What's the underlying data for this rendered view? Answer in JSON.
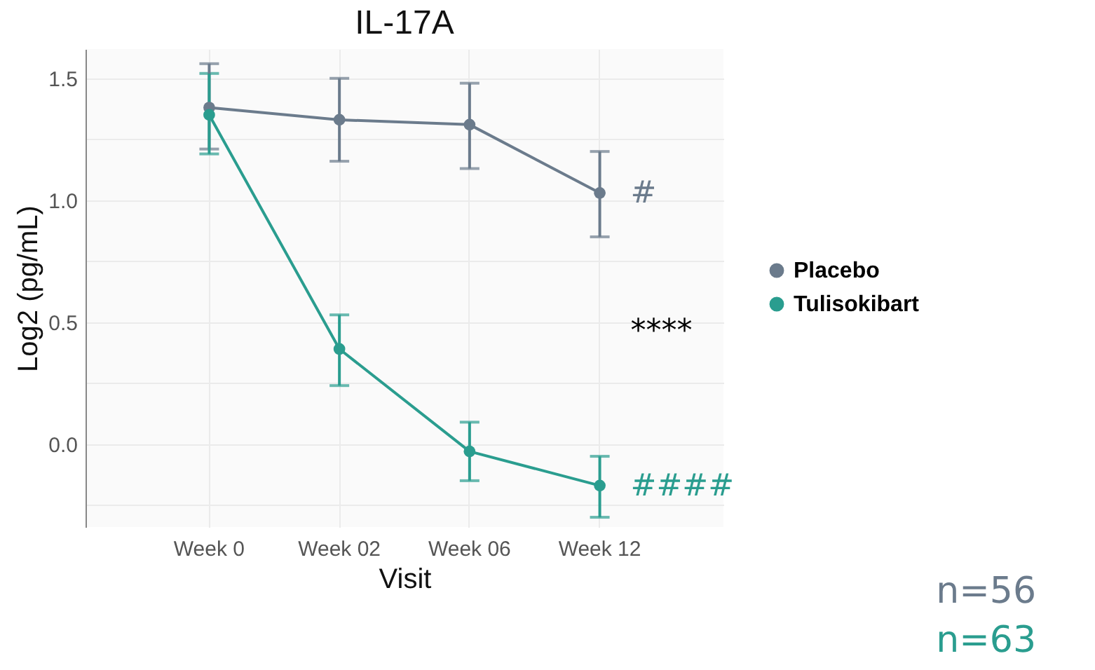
{
  "chart_data": {
    "type": "line",
    "title": "IL-17A",
    "xlabel": "Visit",
    "ylabel": "Log2 (pg/mL)",
    "categories": [
      "Week 0",
      "Week 02",
      "Week 06",
      "Week 12"
    ],
    "series": [
      {
        "name": "Placebo",
        "color": "#6b7b8c",
        "values": [
          1.38,
          1.33,
          1.31,
          1.03
        ],
        "errors": [
          [
            1.21,
            1.56
          ],
          [
            1.16,
            1.5
          ],
          [
            1.13,
            1.48
          ],
          [
            0.85,
            1.2
          ]
        ]
      },
      {
        "name": "Tulisokibart",
        "color": "#2a9d8f",
        "values": [
          1.35,
          0.39,
          -0.03,
          -0.17
        ],
        "errors": [
          [
            1.19,
            1.52
          ],
          [
            0.24,
            0.53
          ],
          [
            -0.15,
            0.09
          ],
          [
            -0.3,
            -0.05
          ]
        ]
      }
    ],
    "ylim": [
      -0.34,
      1.62
    ],
    "yticks": [
      {
        "value": -0.25,
        "label": null
      },
      {
        "value": 0,
        "label": "0.0"
      },
      {
        "value": 0.25,
        "label": null
      },
      0.5,
      {
        "value": 0.75,
        "label": null
      },
      {
        "value": 1,
        "label": "1.0"
      },
      {
        "value": 1.25,
        "label": null
      },
      1.5
    ],
    "annotations": [
      {
        "text": "#",
        "x": "Week 12",
        "y": 1.03
      },
      "****",
      {
        "text": "####",
        "x": "Week 12",
        "y": -0.17
      },
      "n=56",
      "n=63"
    ],
    "grid": true,
    "legend": "right",
    "marker": "circle",
    "line_style": "solid"
  }
}
